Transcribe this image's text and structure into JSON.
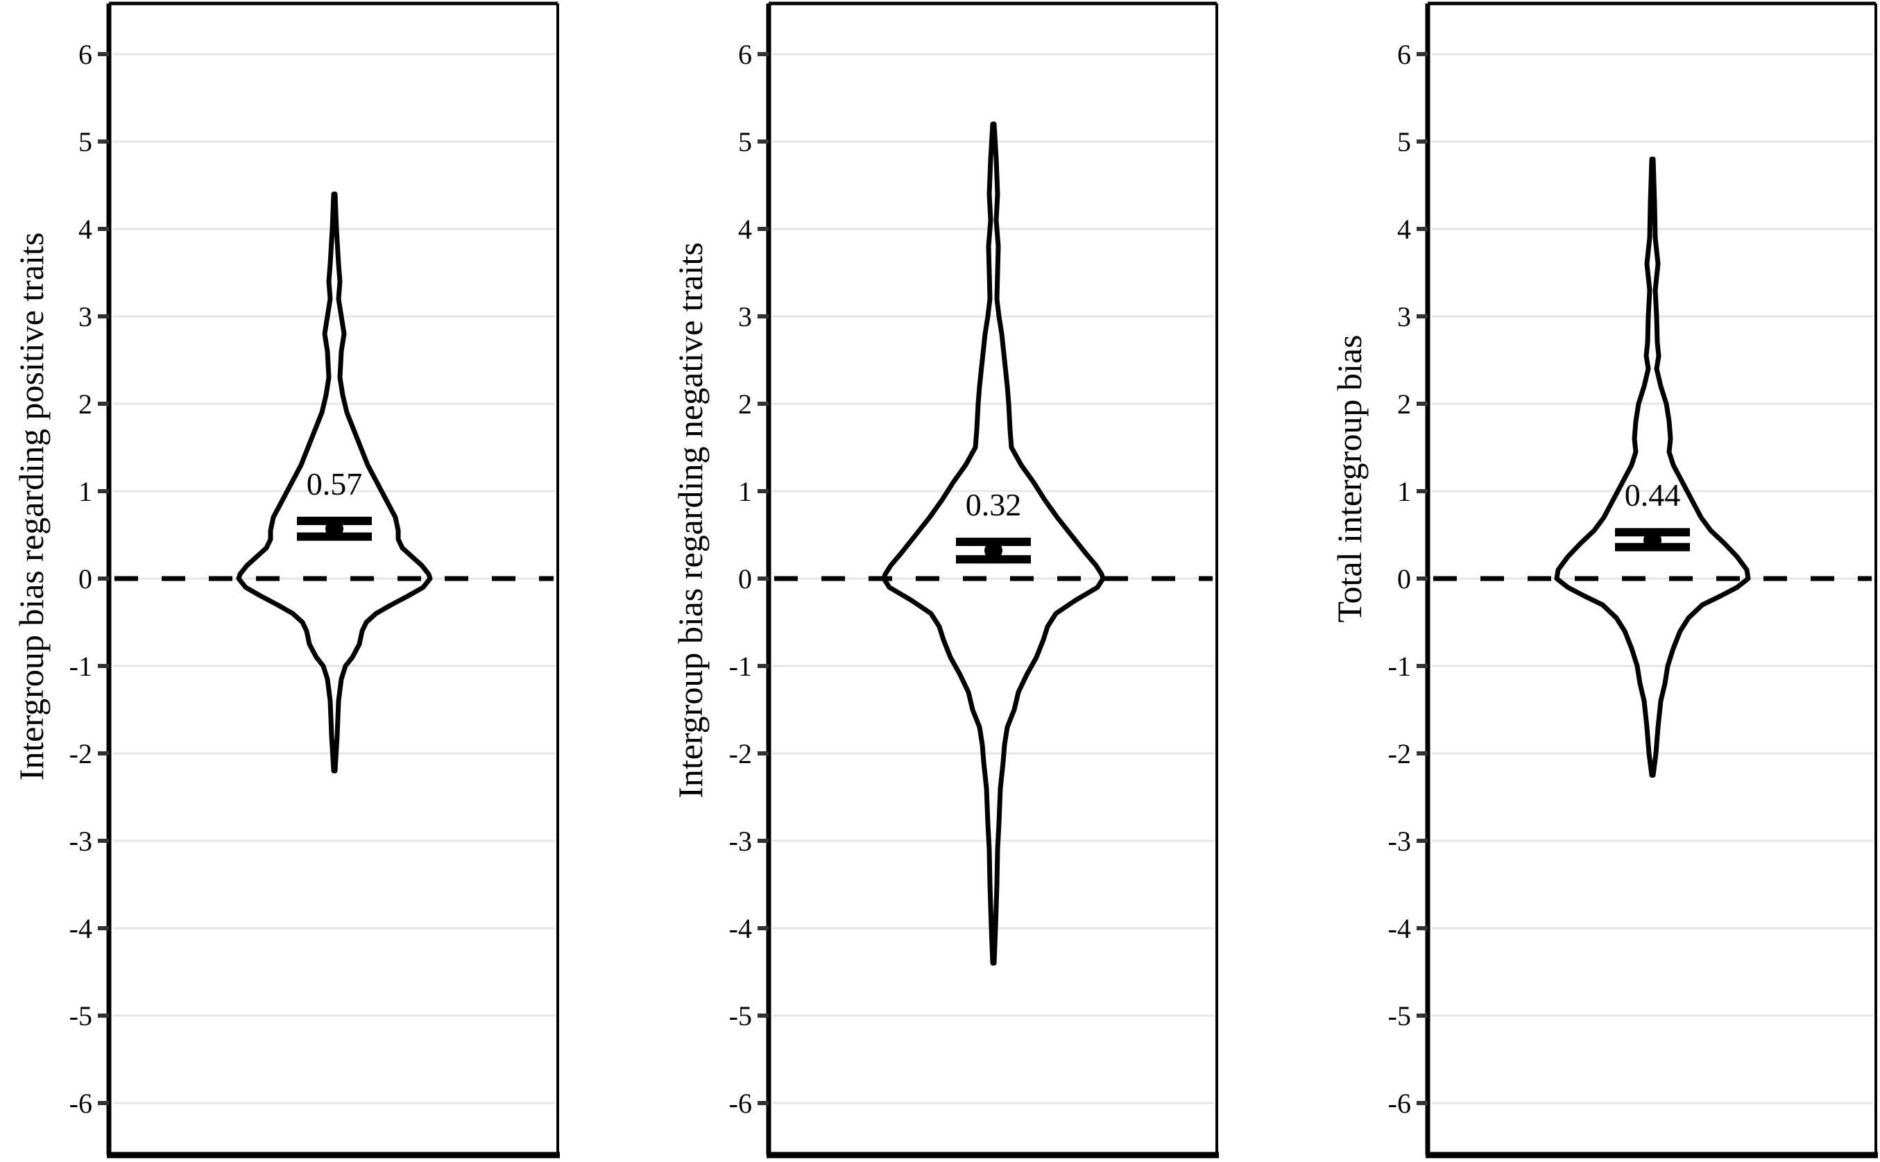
{
  "chart_data": [
    {
      "type": "violin",
      "title": "",
      "ylabel": "Intergroup bias regarding positive traits",
      "xlabel": "",
      "ylim": [
        -6.5,
        6.5
      ],
      "yticks": [
        6,
        5,
        4,
        3,
        2,
        1,
        0,
        -1,
        -2,
        -3,
        -4,
        -5,
        -6
      ],
      "grid": true,
      "reference_line": {
        "y": 0,
        "style": "dashed"
      },
      "mean": 0.57,
      "mean_label": "0.57",
      "ci": [
        0.48,
        0.66
      ],
      "range": [
        -2.2,
        4.4
      ],
      "profile": [
        [
          4.4,
          1
        ],
        [
          4.0,
          3
        ],
        [
          3.6,
          6
        ],
        [
          3.4,
          8
        ],
        [
          3.2,
          6
        ],
        [
          3.0,
          10
        ],
        [
          2.8,
          14
        ],
        [
          2.6,
          10
        ],
        [
          2.3,
          8
        ],
        [
          2.1,
          12
        ],
        [
          1.9,
          18
        ],
        [
          1.7,
          28
        ],
        [
          1.5,
          38
        ],
        [
          1.3,
          48
        ],
        [
          1.15,
          58
        ],
        [
          1.0,
          68
        ],
        [
          0.85,
          78
        ],
        [
          0.7,
          88
        ],
        [
          0.55,
          92
        ],
        [
          0.45,
          92
        ],
        [
          0.35,
          98
        ],
        [
          0.25,
          112
        ],
        [
          0.15,
          126
        ],
        [
          0.05,
          136
        ],
        [
          0.0,
          138
        ],
        [
          -0.1,
          128
        ],
        [
          -0.2,
          106
        ],
        [
          -0.3,
          82
        ],
        [
          -0.4,
          60
        ],
        [
          -0.5,
          46
        ],
        [
          -0.6,
          40
        ],
        [
          -0.75,
          36
        ],
        [
          -0.9,
          26
        ],
        [
          -1.0,
          16
        ],
        [
          -1.15,
          10
        ],
        [
          -1.4,
          6
        ],
        [
          -1.8,
          4
        ],
        [
          -2.2,
          1
        ]
      ]
    },
    {
      "type": "violin",
      "title": "",
      "ylabel": "Intergroup bias regarding negative traits",
      "xlabel": "",
      "ylim": [
        -6.5,
        6.5
      ],
      "yticks": [
        6,
        5,
        4,
        3,
        2,
        1,
        0,
        -1,
        -2,
        -3,
        -4,
        -5,
        -6
      ],
      "grid": true,
      "reference_line": {
        "y": 0,
        "style": "dashed"
      },
      "mean": 0.32,
      "mean_label": "0.32",
      "ci": [
        0.22,
        0.42
      ],
      "range": [
        -4.4,
        5.2
      ],
      "profile": [
        [
          5.2,
          1
        ],
        [
          4.8,
          4
        ],
        [
          4.4,
          6
        ],
        [
          4.1,
          4
        ],
        [
          3.8,
          7
        ],
        [
          3.5,
          6
        ],
        [
          3.2,
          5
        ],
        [
          3.0,
          8
        ],
        [
          2.8,
          12
        ],
        [
          2.5,
          16
        ],
        [
          2.2,
          20
        ],
        [
          2.0,
          22
        ],
        [
          1.7,
          24
        ],
        [
          1.5,
          26
        ],
        [
          1.3,
          40
        ],
        [
          1.1,
          58
        ],
        [
          0.9,
          74
        ],
        [
          0.7,
          92
        ],
        [
          0.5,
          112
        ],
        [
          0.3,
          132
        ],
        [
          0.15,
          148
        ],
        [
          0.05,
          156
        ],
        [
          0.0,
          158
        ],
        [
          -0.1,
          150
        ],
        [
          -0.25,
          118
        ],
        [
          -0.4,
          90
        ],
        [
          -0.55,
          78
        ],
        [
          -0.7,
          72
        ],
        [
          -0.9,
          62
        ],
        [
          -1.1,
          48
        ],
        [
          -1.3,
          36
        ],
        [
          -1.5,
          30
        ],
        [
          -1.7,
          20
        ],
        [
          -1.9,
          16
        ],
        [
          -2.1,
          14
        ],
        [
          -2.4,
          10
        ],
        [
          -2.8,
          8
        ],
        [
          -3.1,
          6
        ],
        [
          -3.5,
          5
        ],
        [
          -4.0,
          3
        ],
        [
          -4.4,
          1
        ]
      ]
    },
    {
      "type": "violin",
      "title": "",
      "ylabel": "Total intergroup bias",
      "xlabel": "",
      "ylim": [
        -6.5,
        6.5
      ],
      "yticks": [
        6,
        5,
        4,
        3,
        2,
        1,
        0,
        -1,
        -2,
        -3,
        -4,
        -5,
        -6
      ],
      "grid": true,
      "reference_line": {
        "y": 0,
        "style": "dashed"
      },
      "mean": 0.44,
      "mean_label": "0.44",
      "ci": [
        0.36,
        0.53
      ],
      "range": [
        -2.25,
        4.8
      ],
      "profile": [
        [
          4.8,
          1
        ],
        [
          4.3,
          3
        ],
        [
          3.9,
          4
        ],
        [
          3.6,
          8
        ],
        [
          3.3,
          4
        ],
        [
          3.0,
          6
        ],
        [
          2.7,
          7
        ],
        [
          2.55,
          9
        ],
        [
          2.4,
          6
        ],
        [
          2.2,
          12
        ],
        [
          2.0,
          20
        ],
        [
          1.8,
          24
        ],
        [
          1.6,
          26
        ],
        [
          1.45,
          24
        ],
        [
          1.3,
          30
        ],
        [
          1.15,
          40
        ],
        [
          1.0,
          50
        ],
        [
          0.85,
          60
        ],
        [
          0.7,
          70
        ],
        [
          0.55,
          84
        ],
        [
          0.4,
          104
        ],
        [
          0.25,
          122
        ],
        [
          0.1,
          136
        ],
        [
          0.0,
          138
        ],
        [
          -0.1,
          122
        ],
        [
          -0.2,
          98
        ],
        [
          -0.3,
          72
        ],
        [
          -0.45,
          52
        ],
        [
          -0.6,
          40
        ],
        [
          -0.8,
          30
        ],
        [
          -1.0,
          22
        ],
        [
          -1.2,
          18
        ],
        [
          -1.4,
          12
        ],
        [
          -1.7,
          8
        ],
        [
          -2.0,
          5
        ],
        [
          -2.25,
          1
        ]
      ]
    }
  ],
  "panels": [
    {
      "ylabel": "Intergroup bias regarding positive traits",
      "mean_label": "0.57"
    },
    {
      "ylabel": "Intergroup bias regarding negative traits",
      "mean_label": "0.32"
    },
    {
      "ylabel": "Total intergroup bias",
      "mean_label": "0.44"
    }
  ],
  "ytick_labels": [
    "6",
    "5",
    "4",
    "3",
    "2",
    "1",
    "0",
    "-1",
    "-2",
    "-3",
    "-4",
    "-5",
    "-6"
  ],
  "colors": {
    "line": "#000000",
    "grid": "#e5e5e5",
    "tick": "#333333",
    "background": "#ffffff"
  }
}
